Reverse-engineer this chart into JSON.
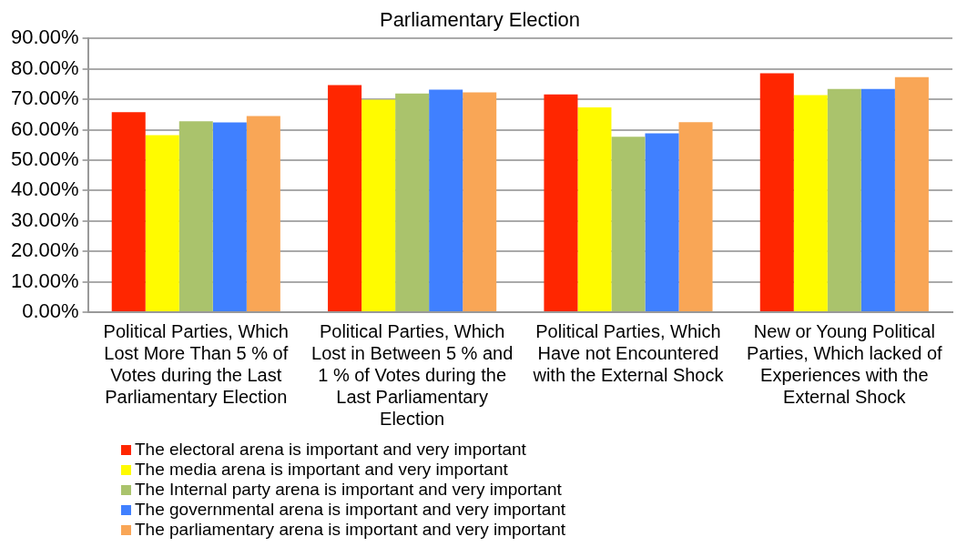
{
  "chart_data": {
    "type": "bar",
    "title": "Parliamentary Election",
    "categories": [
      "Political Parties, Which Lost More Than 5 % of Votes during the Last Parliamentary Election",
      "Political Parties, Which Lost in Between 5 % and 1 % of Votes during the Last Parliamentary Election",
      "Political Parties, Which Have not Encountered with the External Shock",
      "New or Young Political Parties, Which lacked of Experiences with the External Shock"
    ],
    "series": [
      {
        "name": "The electoral arena is important and very important",
        "color": "#ff2600",
        "values": [
          65.8,
          74.7,
          71.6,
          78.6
        ]
      },
      {
        "name": "The media arena is important and very important",
        "color": "#fffb00",
        "values": [
          58.2,
          69.9,
          67.4,
          71.4
        ]
      },
      {
        "name": "The Internal party arena is important and very important",
        "color": "#aac36c",
        "values": [
          62.8,
          71.9,
          57.7,
          73.4
        ]
      },
      {
        "name": "The governmental arena is important and very important",
        "color": "#4080ff",
        "values": [
          62.4,
          73.2,
          58.8,
          73.4
        ]
      },
      {
        "name": "The parliamentary arena is important and very important",
        "color": "#f9a656",
        "values": [
          64.5,
          72.3,
          62.5,
          77.3
        ]
      }
    ],
    "ylim": [
      0,
      90
    ],
    "yticks": [
      {
        "value": 0,
        "label": "0.00%"
      },
      {
        "value": 10,
        "label": "10.00%"
      },
      {
        "value": 20,
        "label": "20.00%"
      },
      {
        "value": 30,
        "label": "30.00%"
      },
      {
        "value": 40,
        "label": "40.00%"
      },
      {
        "value": 50,
        "label": "50.00%"
      },
      {
        "value": 60,
        "label": "60.00%"
      },
      {
        "value": 70,
        "label": "70.00%"
      },
      {
        "value": 80,
        "label": "80.00%"
      },
      {
        "value": 90,
        "label": "90.00%"
      }
    ],
    "grid": "y",
    "legend": "bottom"
  }
}
